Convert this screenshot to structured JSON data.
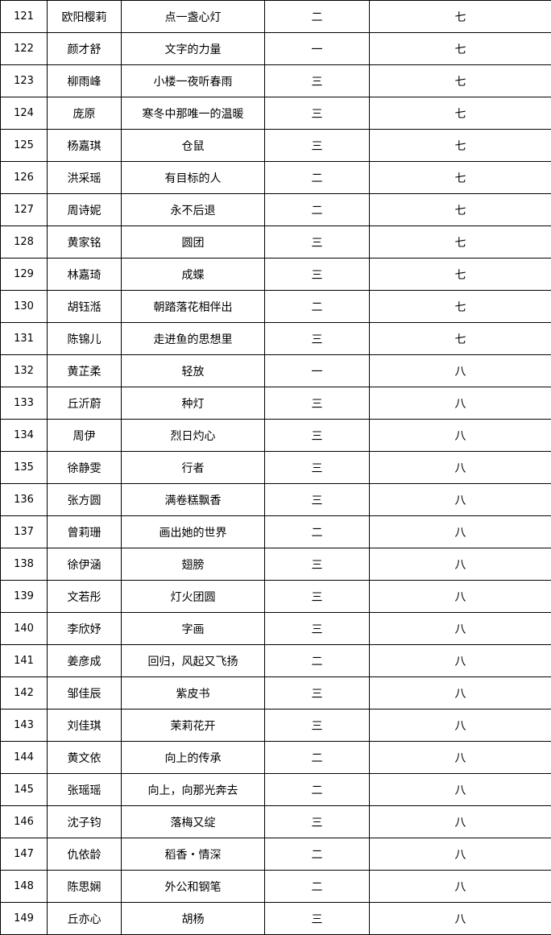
{
  "rows": [
    {
      "no": "121",
      "name": "欧阳樱莉",
      "title": "点一盏心灯",
      "grade": "二",
      "group": "七"
    },
    {
      "no": "122",
      "name": "颜才舒",
      "title": "文字的力量",
      "grade": "一",
      "group": "七"
    },
    {
      "no": "123",
      "name": "柳雨峰",
      "title": "小楼一夜听春雨",
      "grade": "三",
      "group": "七"
    },
    {
      "no": "124",
      "name": "庞原",
      "title": "寒冬中那唯一的温暖",
      "grade": "三",
      "group": "七"
    },
    {
      "no": "125",
      "name": "杨嘉琪",
      "title": "仓鼠",
      "grade": "三",
      "group": "七"
    },
    {
      "no": "126",
      "name": "洪采瑶",
      "title": "有目标的人",
      "grade": "二",
      "group": "七"
    },
    {
      "no": "127",
      "name": "周诗妮",
      "title": "永不后退",
      "grade": "二",
      "group": "七"
    },
    {
      "no": "128",
      "name": "黄家铭",
      "title": "圆团",
      "grade": "三",
      "group": "七"
    },
    {
      "no": "129",
      "name": "林嘉琦",
      "title": "成蝶",
      "grade": "三",
      "group": "七"
    },
    {
      "no": "130",
      "name": "胡钰湉",
      "title": "朝踏落花相伴出",
      "grade": "二",
      "group": "七"
    },
    {
      "no": "131",
      "name": "陈锦儿",
      "title": "走进鱼的思想里",
      "grade": "三",
      "group": "七"
    },
    {
      "no": "132",
      "name": "黄芷柔",
      "title": "轻放",
      "grade": "一",
      "group": "八"
    },
    {
      "no": "133",
      "name": "丘沂蔚",
      "title": "种灯",
      "grade": "三",
      "group": "八"
    },
    {
      "no": "134",
      "name": "周伊",
      "title": "烈日灼心",
      "grade": "三",
      "group": "八"
    },
    {
      "no": "135",
      "name": "徐静雯",
      "title": "行者",
      "grade": "三",
      "group": "八"
    },
    {
      "no": "136",
      "name": "张方圆",
      "title": "满卷糕飘香",
      "grade": "三",
      "group": "八"
    },
    {
      "no": "137",
      "name": "曾莉珊",
      "title": "画出她的世界",
      "grade": "二",
      "group": "八"
    },
    {
      "no": "138",
      "name": "徐伊涵",
      "title": "翅膀",
      "grade": "三",
      "group": "八"
    },
    {
      "no": "139",
      "name": "文若彤",
      "title": "灯火团圆",
      "grade": "三",
      "group": "八"
    },
    {
      "no": "140",
      "name": "李欣妤",
      "title": "字画",
      "grade": "三",
      "group": "八"
    },
    {
      "no": "141",
      "name": "姜彦成",
      "title": "回归，风起又飞扬",
      "grade": "二",
      "group": "八"
    },
    {
      "no": "142",
      "name": "邹佳辰",
      "title": "紫皮书",
      "grade": "三",
      "group": "八"
    },
    {
      "no": "143",
      "name": "刘佳琪",
      "title": "茉莉花开",
      "grade": "三",
      "group": "八"
    },
    {
      "no": "144",
      "name": "黄文依",
      "title": "向上的传承",
      "grade": "二",
      "group": "八"
    },
    {
      "no": "145",
      "name": "张瑶瑶",
      "title": "向上，向那光奔去",
      "grade": "二",
      "group": "八"
    },
    {
      "no": "146",
      "name": "沈子钧",
      "title": "落梅又绽",
      "grade": "三",
      "group": "八"
    },
    {
      "no": "147",
      "name": "仇依龄",
      "title": "稻香・情深",
      "grade": "二",
      "group": "八"
    },
    {
      "no": "148",
      "name": "陈思娴",
      "title": "外公和钢笔",
      "grade": "二",
      "group": "八"
    },
    {
      "no": "149",
      "name": "丘亦心",
      "title": "胡杨",
      "grade": "三",
      "group": "八"
    }
  ]
}
